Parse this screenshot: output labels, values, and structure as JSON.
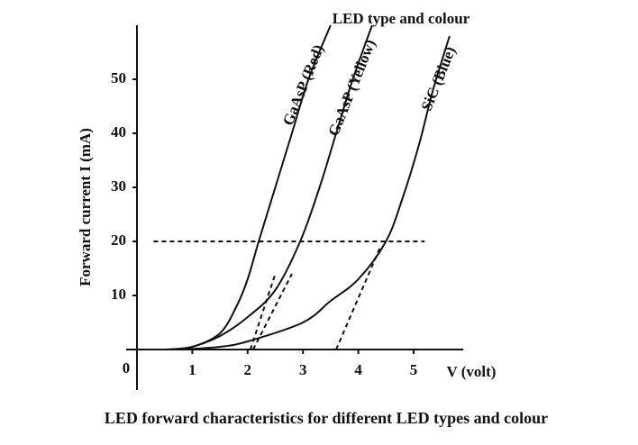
{
  "chart_data": {
    "type": "line",
    "title": "LED forward characteristics for different LED types and colour",
    "annotation": "LED type and colour",
    "x_label": "V (volt)",
    "y_label": "Forward current I (mA)",
    "origin_label": "0",
    "xlim": [
      0,
      5.9
    ],
    "ylim": [
      0,
      60
    ],
    "xticks": [
      1,
      2,
      3,
      4,
      5
    ],
    "yticks": [
      10,
      20,
      30,
      40,
      50
    ],
    "reference_line": {
      "y": 20,
      "x": [
        0.3,
        5.2
      ]
    },
    "tangents": [
      {
        "x": [
          2.05,
          2.5
        ],
        "y": [
          0,
          14
        ]
      },
      {
        "x": [
          2.1,
          2.8
        ],
        "y": [
          0,
          14
        ]
      },
      {
        "x": [
          3.6,
          4.4
        ],
        "y": [
          0,
          19
        ]
      }
    ],
    "series": [
      {
        "name": "GaAsP (Red)",
        "color": "#111111",
        "x": [
          0.5,
          1.0,
          1.5,
          1.8,
          2.0,
          2.2,
          2.5,
          2.8,
          3.1,
          3.5
        ],
        "values": [
          0,
          0.5,
          3,
          8,
          13,
          20,
          30,
          40,
          50,
          60
        ]
      },
      {
        "name": "GaAsP (Yellow)",
        "color": "#111111",
        "x": [
          0.6,
          1.0,
          1.5,
          2.0,
          2.5,
          2.95,
          3.3,
          3.6,
          3.9,
          4.25
        ],
        "values": [
          0,
          0.5,
          2.5,
          6,
          11,
          20,
          30,
          40,
          50,
          60
        ]
      },
      {
        "name": "SiC (Blue)",
        "color": "#111111",
        "x": [
          0.8,
          1.5,
          2.0,
          3.0,
          3.5,
          4.0,
          4.5,
          4.8,
          5.1,
          5.35,
          5.65
        ],
        "values": [
          0,
          0.5,
          1.5,
          5,
          9,
          13,
          20,
          28,
          38,
          48,
          58
        ]
      }
    ]
  }
}
